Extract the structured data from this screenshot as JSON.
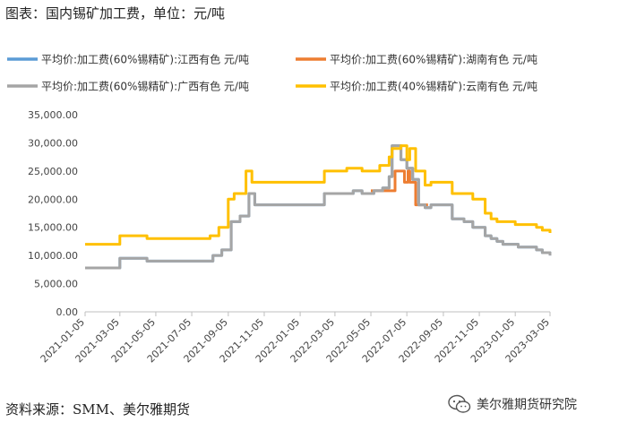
{
  "title": "图表：国内锡矿加工费，单位：元/吨",
  "source": "资料来源：SMM、美尔雅期货",
  "watermark": "美尔雅期货研究院",
  "chart_data": {
    "type": "line",
    "title": "图表：国内锡矿加工费，单位：元/吨",
    "xlabel": "",
    "ylabel": "",
    "ylim": [
      0,
      35000
    ],
    "yticks": [
      0,
      5000,
      10000,
      15000,
      20000,
      25000,
      30000,
      35000
    ],
    "ytick_labels": [
      "0.00",
      "5,000.00",
      "10,000.00",
      "15,000.00",
      "20,000.00",
      "25,000.00",
      "30,000.00",
      "35,000.00"
    ],
    "xlim": [
      "2021-01-05",
      "2023-03-05"
    ],
    "xtick_labels": [
      "2021-01-05",
      "2021-03-05",
      "2021-05-05",
      "2021-07-05",
      "2021-09-05",
      "2021-11-05",
      "2022-01-05",
      "2022-03-05",
      "2022-05-05",
      "2022-07-05",
      "2022-09-05",
      "2022-11-05",
      "2023-01-05",
      "2023-03-05"
    ],
    "grid": false,
    "legend_position": "top",
    "series": [
      {
        "name": "平均价:加工费(60%锡精矿):江西有色 元/吨",
        "color": "#5B9BD5",
        "step": true,
        "points": [
          [
            "2021-01-05",
            7800
          ],
          [
            "2021-03-05",
            9500
          ],
          [
            "2021-04-20",
            9000
          ],
          [
            "2021-08-10",
            10000
          ],
          [
            "2021-08-25",
            11000
          ],
          [
            "2021-09-10",
            16000
          ],
          [
            "2021-09-25",
            17000
          ],
          [
            "2021-10-10",
            21000
          ],
          [
            "2021-10-20",
            19000
          ],
          [
            "2022-01-05",
            19000
          ],
          [
            "2022-02-15",
            21000
          ],
          [
            "2022-04-05",
            21500
          ],
          [
            "2022-04-20",
            21000
          ],
          [
            "2022-05-10",
            21500
          ],
          [
            "2022-05-25",
            22000
          ],
          [
            "2022-06-05",
            24000
          ],
          [
            "2022-06-10",
            29500
          ],
          [
            "2022-06-25",
            27000
          ],
          [
            "2022-07-05",
            25500
          ],
          [
            "2022-07-15",
            23500
          ],
          [
            "2022-07-25",
            19000
          ],
          [
            "2022-08-05",
            18500
          ],
          [
            "2022-08-15",
            19000
          ],
          [
            "2022-09-20",
            16500
          ],
          [
            "2022-10-10",
            16000
          ],
          [
            "2022-10-25",
            15000
          ],
          [
            "2022-11-15",
            13500
          ],
          [
            "2022-11-25",
            13000
          ],
          [
            "2022-12-05",
            12500
          ],
          [
            "2022-12-15",
            12000
          ],
          [
            "2023-01-10",
            11500
          ],
          [
            "2023-02-10",
            11000
          ],
          [
            "2023-02-20",
            10500
          ],
          [
            "2023-03-05",
            10000
          ]
        ]
      },
      {
        "name": "平均价:加工费(60%锡精矿):湖南有色 元/吨",
        "color": "#ED7D31",
        "step": true,
        "points": [
          [
            "2022-05-05",
            21500
          ],
          [
            "2022-06-15",
            25000
          ],
          [
            "2022-07-01",
            23000
          ],
          [
            "2022-07-07",
            25000
          ],
          [
            "2022-07-10",
            23000
          ],
          [
            "2022-07-20",
            19000
          ],
          [
            "2022-08-10",
            19000
          ]
        ]
      },
      {
        "name": "平均价:加工费(60%锡精矿):广西有色 元/吨",
        "color": "#A5A5A5",
        "step": true,
        "points": [
          [
            "2021-01-05",
            7800
          ],
          [
            "2021-03-05",
            9500
          ],
          [
            "2021-04-20",
            9000
          ],
          [
            "2021-08-10",
            10000
          ],
          [
            "2021-08-25",
            11000
          ],
          [
            "2021-09-10",
            16000
          ],
          [
            "2021-09-25",
            17000
          ],
          [
            "2021-10-10",
            21000
          ],
          [
            "2021-10-20",
            19000
          ],
          [
            "2022-01-05",
            19000
          ],
          [
            "2022-02-15",
            21000
          ],
          [
            "2022-04-05",
            21500
          ],
          [
            "2022-04-20",
            21000
          ],
          [
            "2022-05-10",
            21500
          ],
          [
            "2022-05-25",
            22000
          ],
          [
            "2022-06-05",
            24000
          ],
          [
            "2022-06-10",
            29500
          ],
          [
            "2022-06-25",
            27000
          ],
          [
            "2022-07-05",
            25500
          ],
          [
            "2022-07-15",
            23500
          ],
          [
            "2022-07-25",
            19000
          ],
          [
            "2022-08-05",
            18500
          ],
          [
            "2022-08-15",
            19000
          ],
          [
            "2022-09-20",
            16500
          ],
          [
            "2022-10-10",
            16000
          ],
          [
            "2022-10-25",
            15000
          ],
          [
            "2022-11-15",
            13500
          ],
          [
            "2022-11-25",
            13000
          ],
          [
            "2022-12-05",
            12500
          ],
          [
            "2022-12-15",
            12000
          ],
          [
            "2023-01-10",
            11500
          ],
          [
            "2023-02-10",
            11000
          ],
          [
            "2023-02-20",
            10500
          ],
          [
            "2023-03-05",
            10000
          ]
        ]
      },
      {
        "name": "平均价:加工费(40%锡精矿):云南有色 元/吨",
        "color": "#FFC000",
        "step": true,
        "points": [
          [
            "2021-01-05",
            12000
          ],
          [
            "2021-03-05",
            13500
          ],
          [
            "2021-04-20",
            13000
          ],
          [
            "2021-08-05",
            13500
          ],
          [
            "2021-08-20",
            15000
          ],
          [
            "2021-09-05",
            20000
          ],
          [
            "2021-09-15",
            21000
          ],
          [
            "2021-10-05",
            25000
          ],
          [
            "2021-10-15",
            23000
          ],
          [
            "2022-01-05",
            23000
          ],
          [
            "2022-02-15",
            25000
          ],
          [
            "2022-03-25",
            25500
          ],
          [
            "2022-04-20",
            25000
          ],
          [
            "2022-05-20",
            26000
          ],
          [
            "2022-06-05",
            27500
          ],
          [
            "2022-06-10",
            29000
          ],
          [
            "2022-06-25",
            29500
          ],
          [
            "2022-07-05",
            27000
          ],
          [
            "2022-07-10",
            29000
          ],
          [
            "2022-07-20",
            25000
          ],
          [
            "2022-08-05",
            22500
          ],
          [
            "2022-08-15",
            23000
          ],
          [
            "2022-09-20",
            21000
          ],
          [
            "2022-10-25",
            20000
          ],
          [
            "2022-11-15",
            17500
          ],
          [
            "2022-11-25",
            16500
          ],
          [
            "2022-12-05",
            16000
          ],
          [
            "2023-01-05",
            15500
          ],
          [
            "2023-02-10",
            15000
          ],
          [
            "2023-02-20",
            14500
          ],
          [
            "2023-03-05",
            14000
          ]
        ]
      }
    ]
  }
}
